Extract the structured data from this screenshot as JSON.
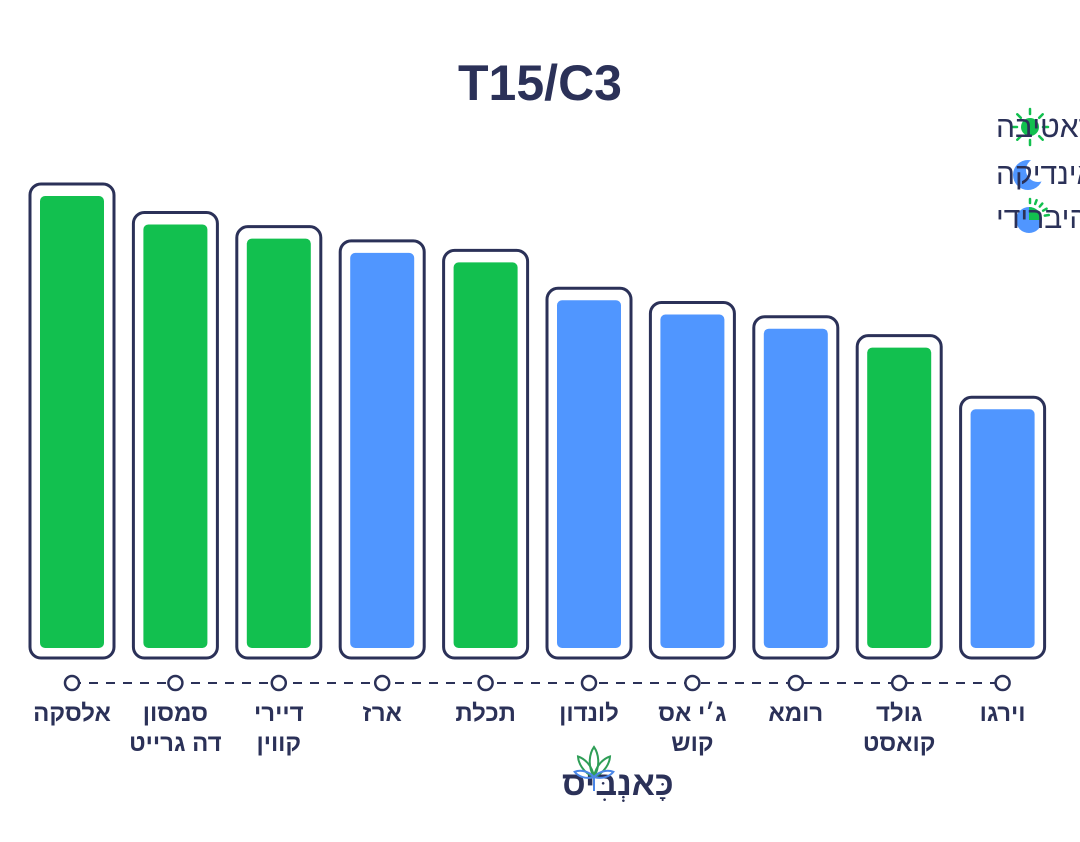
{
  "chart_data": {
    "type": "bar",
    "title": "T15/C3",
    "xlabel": "",
    "ylabel": "",
    "grid": false,
    "legend_position": "top-right",
    "ylim": [
      0,
      100
    ],
    "categories": [
      [
        "אלסקה"
      ],
      [
        "סמסון",
        "דה גרייט"
      ],
      [
        "דיירי",
        "קווין"
      ],
      [
        "ארז"
      ],
      [
        "תכלת"
      ],
      [
        "לונדון"
      ],
      [
        "ג׳י אס",
        "קוש"
      ],
      [
        "רומא"
      ],
      [
        "גולד",
        "קואסט"
      ],
      [
        "וירגו"
      ]
    ],
    "values": [
      100,
      94,
      91,
      88,
      86,
      78,
      75,
      72,
      68,
      55
    ],
    "types": [
      "sativa",
      "sativa",
      "sativa",
      "indica",
      "sativa",
      "indica",
      "indica",
      "indica",
      "sativa",
      "indica"
    ],
    "legend": [
      {
        "key": "sativa",
        "label": "סאטיבה",
        "icon": "sun-icon"
      },
      {
        "key": "indica",
        "label": "אינדיקה",
        "icon": "moon-icon"
      },
      {
        "key": "hybrid",
        "label": "היברידי",
        "icon": "half-sun-moon-icon"
      }
    ]
  },
  "colors": {
    "sativa": "#12c04f",
    "indica": "#5096ff",
    "outline": "#2b3158",
    "text": "#2b3158"
  },
  "brand": {
    "name": "כָּאנְבִּיס",
    "icon": "cannabis-leaf-icon"
  }
}
